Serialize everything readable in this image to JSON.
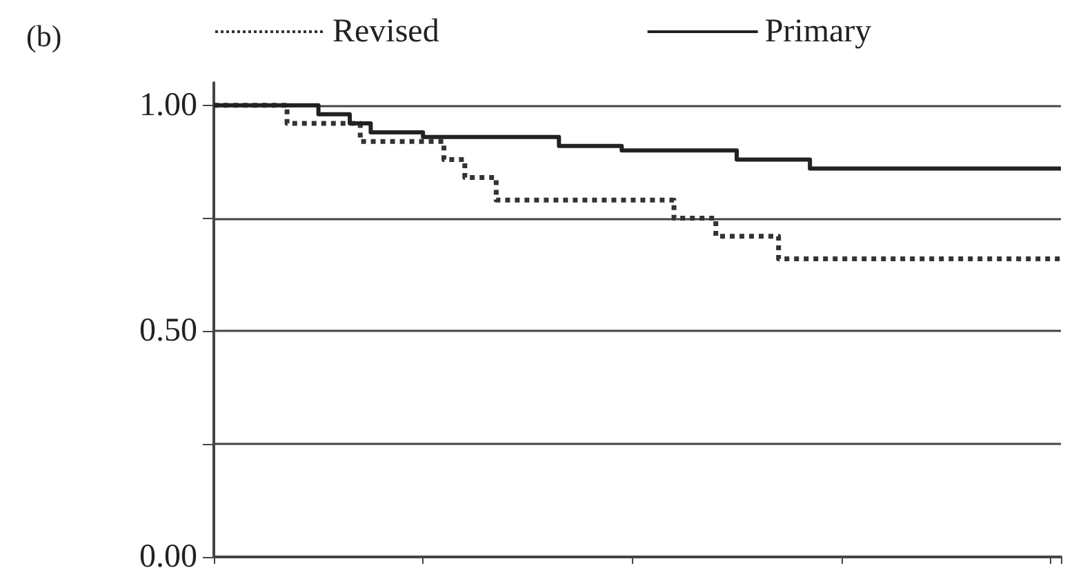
{
  "chart_data": {
    "type": "step",
    "title": "(b)",
    "categories": [
      null,
      null,
      null,
      null,
      null,
      null,
      null,
      null,
      null,
      null,
      null,
      null,
      null,
      null,
      null,
      null,
      null,
      null,
      null,
      null,
      null,
      null,
      null,
      null,
      null,
      null,
      null,
      null,
      null,
      null,
      null,
      null,
      null,
      null,
      null,
      null,
      null,
      null,
      null,
      null,
      null,
      null,
      null,
      null,
      null,
      null,
      null,
      null,
      null,
      null,
      null,
      null,
      null,
      null,
      null,
      null,
      null,
      null,
      null,
      null,
      null,
      null,
      null,
      null,
      null,
      null,
      null,
      null,
      null,
      null,
      null,
      null,
      null,
      null,
      null,
      null,
      null,
      null,
      null,
      null,
      null,
      null
    ],
    "ylim": [
      0,
      1.05
    ],
    "yticks": [
      {
        "value": 0,
        "label": "0.00"
      },
      {
        "value": 0.25,
        "label": null
      },
      {
        "value": 0.5,
        "label": "0.50"
      },
      {
        "value": 0.75,
        "label": null
      },
      {
        "value": 1,
        "label": "1.00"
      }
    ],
    "tick_labels": "y",
    "grid": "y",
    "legend": "top",
    "series": [
      {
        "name": "Revised",
        "color": "#333333",
        "line_style": "dotted",
        "values": [
          1.0,
          1.0,
          1.0,
          1.0,
          1.0,
          1.0,
          1.0,
          0.96,
          0.96,
          0.96,
          0.96,
          0.96,
          0.96,
          0.96,
          0.92,
          0.92,
          0.92,
          0.92,
          0.92,
          0.92,
          0.92,
          0.92,
          0.88,
          0.88,
          0.84,
          0.84,
          0.84,
          0.79,
          0.79,
          0.79,
          0.79,
          0.79,
          0.79,
          0.79,
          0.79,
          0.79,
          0.79,
          0.79,
          0.79,
          0.79,
          0.79,
          0.79,
          0.79,
          0.79,
          0.75,
          0.75,
          0.75,
          0.75,
          0.71,
          0.71,
          0.71,
          0.71,
          0.71,
          0.71,
          0.66,
          0.66,
          0.66,
          0.66,
          0.66,
          0.66,
          0.66,
          0.66,
          0.66,
          0.66,
          0.66,
          0.66,
          0.66,
          0.66,
          0.66,
          0.66,
          0.66,
          0.66,
          0.66,
          0.66,
          0.66,
          0.66,
          0.66,
          0.66,
          0.66,
          0.66,
          0.66,
          0.66
        ]
      },
      {
        "name": "Primary",
        "color": "#222222",
        "line_style": "solid",
        "values": [
          1.0,
          1.0,
          1.0,
          1.0,
          1.0,
          1.0,
          1.0,
          1.0,
          1.0,
          1.0,
          0.98,
          0.98,
          0.98,
          0.96,
          0.96,
          0.94,
          0.94,
          0.94,
          0.94,
          0.94,
          0.93,
          0.93,
          0.93,
          0.93,
          0.93,
          0.93,
          0.93,
          0.93,
          0.93,
          0.93,
          0.93,
          0.93,
          0.93,
          0.91,
          0.91,
          0.91,
          0.91,
          0.91,
          0.91,
          0.9,
          0.9,
          0.9,
          0.9,
          0.9,
          0.9,
          0.9,
          0.9,
          0.9,
          0.9,
          0.9,
          0.88,
          0.88,
          0.88,
          0.88,
          0.88,
          0.88,
          0.88,
          0.86,
          0.86,
          0.86,
          0.86,
          0.86,
          0.86,
          0.86,
          0.86,
          0.86,
          0.86,
          0.86,
          0.86,
          0.86,
          0.86,
          0.86,
          0.86,
          0.86,
          0.86,
          0.86,
          0.86,
          0.86,
          0.86,
          0.86,
          0.86,
          0.86
        ]
      }
    ]
  }
}
